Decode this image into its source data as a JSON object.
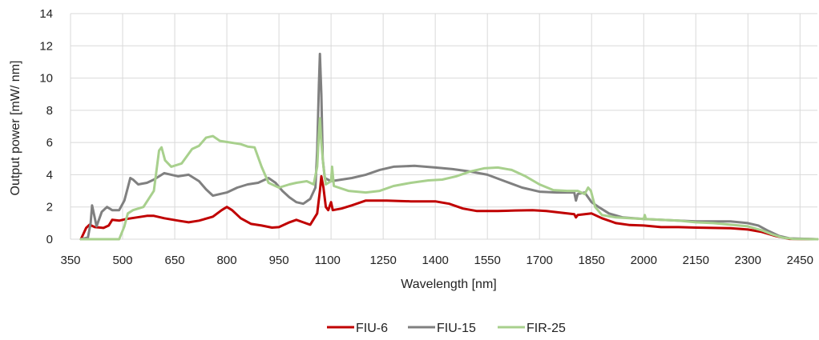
{
  "chart_data": {
    "type": "line",
    "title": "",
    "xlabel": "Wavelength [nm]",
    "ylabel": "Output power [mW/ nm]",
    "xlim": [
      350,
      2500
    ],
    "ylim": [
      0,
      14
    ],
    "x_ticks": [
      350,
      500,
      650,
      800,
      950,
      1100,
      1250,
      1400,
      1550,
      1700,
      1850,
      2000,
      2150,
      2300,
      2450
    ],
    "x_tick_labels": [
      "350",
      "500",
      "650",
      "800",
      "950",
      "1100",
      "1250",
      "1400",
      "1550",
      "1700",
      "1850",
      "2000",
      "2150",
      "2300",
      "2450"
    ],
    "extra_x_label": {
      "value": 1100,
      "text": "1100"
    },
    "x_tick_labels_display": [
      "350",
      "500",
      "650",
      "800",
      "950",
      "1100",
      "1250",
      "1400",
      "1550",
      "1700",
      "1850",
      "2000",
      "2150",
      "2300",
      "2450"
    ],
    "y_ticks": [
      0,
      2,
      4,
      6,
      8,
      10,
      12,
      14
    ],
    "y_tick_labels": [
      "0",
      "2",
      "4",
      "6",
      "8",
      "10",
      "12",
      "14"
    ],
    "grid": true,
    "legend_position": "bottom",
    "series": [
      {
        "name": "FIU-6",
        "color": "#c00000",
        "points": [
          [
            380,
            0
          ],
          [
            395,
            0.7
          ],
          [
            405,
            0.9
          ],
          [
            420,
            0.75
          ],
          [
            445,
            0.7
          ],
          [
            460,
            0.85
          ],
          [
            470,
            1.2
          ],
          [
            490,
            1.15
          ],
          [
            510,
            1.25
          ],
          [
            540,
            1.35
          ],
          [
            570,
            1.45
          ],
          [
            590,
            1.45
          ],
          [
            620,
            1.3
          ],
          [
            660,
            1.15
          ],
          [
            690,
            1.05
          ],
          [
            720,
            1.15
          ],
          [
            760,
            1.4
          ],
          [
            785,
            1.8
          ],
          [
            800,
            2.0
          ],
          [
            815,
            1.8
          ],
          [
            840,
            1.3
          ],
          [
            870,
            0.95
          ],
          [
            900,
            0.85
          ],
          [
            930,
            0.72
          ],
          [
            950,
            0.75
          ],
          [
            980,
            1.05
          ],
          [
            1000,
            1.2
          ],
          [
            1020,
            1.05
          ],
          [
            1040,
            0.9
          ],
          [
            1060,
            1.6
          ],
          [
            1068,
            3.0
          ],
          [
            1072,
            3.9
          ],
          [
            1078,
            3.2
          ],
          [
            1085,
            2.0
          ],
          [
            1092,
            1.8
          ],
          [
            1100,
            2.3
          ],
          [
            1105,
            1.8
          ],
          [
            1130,
            1.9
          ],
          [
            1160,
            2.1
          ],
          [
            1200,
            2.4
          ],
          [
            1260,
            2.4
          ],
          [
            1330,
            2.35
          ],
          [
            1400,
            2.35
          ],
          [
            1440,
            2.2
          ],
          [
            1480,
            1.9
          ],
          [
            1520,
            1.75
          ],
          [
            1580,
            1.75
          ],
          [
            1630,
            1.78
          ],
          [
            1680,
            1.8
          ],
          [
            1720,
            1.75
          ],
          [
            1760,
            1.65
          ],
          [
            1800,
            1.55
          ],
          [
            1805,
            1.35
          ],
          [
            1810,
            1.5
          ],
          [
            1850,
            1.6
          ],
          [
            1880,
            1.3
          ],
          [
            1920,
            1.0
          ],
          [
            1960,
            0.88
          ],
          [
            2000,
            0.85
          ],
          [
            2050,
            0.75
          ],
          [
            2100,
            0.75
          ],
          [
            2150,
            0.72
          ],
          [
            2200,
            0.7
          ],
          [
            2250,
            0.68
          ],
          [
            2300,
            0.6
          ],
          [
            2340,
            0.45
          ],
          [
            2380,
            0.2
          ],
          [
            2420,
            0.02
          ],
          [
            2500,
            0
          ]
        ]
      },
      {
        "name": "FIU-15",
        "color": "#808080",
        "points": [
          [
            380,
            0
          ],
          [
            400,
            0.1
          ],
          [
            408,
            1.0
          ],
          [
            412,
            2.1
          ],
          [
            418,
            1.5
          ],
          [
            425,
            0.8
          ],
          [
            440,
            1.7
          ],
          [
            455,
            2.0
          ],
          [
            470,
            1.8
          ],
          [
            490,
            1.8
          ],
          [
            505,
            2.4
          ],
          [
            515,
            3.2
          ],
          [
            522,
            3.8
          ],
          [
            530,
            3.7
          ],
          [
            545,
            3.4
          ],
          [
            570,
            3.5
          ],
          [
            590,
            3.7
          ],
          [
            620,
            4.1
          ],
          [
            640,
            4.0
          ],
          [
            660,
            3.9
          ],
          [
            690,
            4.0
          ],
          [
            720,
            3.6
          ],
          [
            740,
            3.1
          ],
          [
            760,
            2.7
          ],
          [
            780,
            2.8
          ],
          [
            800,
            2.9
          ],
          [
            830,
            3.2
          ],
          [
            860,
            3.4
          ],
          [
            890,
            3.5
          ],
          [
            920,
            3.8
          ],
          [
            940,
            3.5
          ],
          [
            960,
            3.0
          ],
          [
            980,
            2.6
          ],
          [
            1000,
            2.3
          ],
          [
            1020,
            2.2
          ],
          [
            1040,
            2.5
          ],
          [
            1055,
            3.2
          ],
          [
            1060,
            5.5
          ],
          [
            1065,
            9.5
          ],
          [
            1068,
            11.5
          ],
          [
            1072,
            9.0
          ],
          [
            1076,
            5.0
          ],
          [
            1082,
            3.8
          ],
          [
            1100,
            3.6
          ],
          [
            1130,
            3.7
          ],
          [
            1160,
            3.8
          ],
          [
            1200,
            4.0
          ],
          [
            1240,
            4.3
          ],
          [
            1280,
            4.5
          ],
          [
            1340,
            4.55
          ],
          [
            1400,
            4.45
          ],
          [
            1450,
            4.35
          ],
          [
            1500,
            4.2
          ],
          [
            1550,
            4.0
          ],
          [
            1600,
            3.6
          ],
          [
            1650,
            3.2
          ],
          [
            1700,
            2.95
          ],
          [
            1750,
            2.9
          ],
          [
            1800,
            2.9
          ],
          [
            1805,
            2.4
          ],
          [
            1810,
            2.8
          ],
          [
            1830,
            2.9
          ],
          [
            1850,
            2.3
          ],
          [
            1870,
            2.0
          ],
          [
            1900,
            1.6
          ],
          [
            1940,
            1.35
          ],
          [
            2000,
            1.25
          ],
          [
            2050,
            1.2
          ],
          [
            2100,
            1.15
          ],
          [
            2150,
            1.1
          ],
          [
            2200,
            1.1
          ],
          [
            2250,
            1.1
          ],
          [
            2300,
            1.0
          ],
          [
            2330,
            0.85
          ],
          [
            2360,
            0.5
          ],
          [
            2390,
            0.2
          ],
          [
            2420,
            0.05
          ],
          [
            2500,
            0
          ]
        ]
      },
      {
        "name": "FIR-25",
        "color": "#a8d08d",
        "points": [
          [
            380,
            0
          ],
          [
            490,
            0
          ],
          [
            505,
            0.8
          ],
          [
            515,
            1.6
          ],
          [
            530,
            1.8
          ],
          [
            560,
            2.0
          ],
          [
            590,
            3.0
          ],
          [
            605,
            5.5
          ],
          [
            612,
            5.7
          ],
          [
            622,
            4.9
          ],
          [
            640,
            4.5
          ],
          [
            670,
            4.7
          ],
          [
            700,
            5.6
          ],
          [
            720,
            5.8
          ],
          [
            740,
            6.3
          ],
          [
            760,
            6.4
          ],
          [
            780,
            6.1
          ],
          [
            810,
            6.0
          ],
          [
            840,
            5.9
          ],
          [
            860,
            5.75
          ],
          [
            880,
            5.7
          ],
          [
            900,
            4.5
          ],
          [
            920,
            3.5
          ],
          [
            950,
            3.2
          ],
          [
            980,
            3.4
          ],
          [
            1000,
            3.5
          ],
          [
            1030,
            3.6
          ],
          [
            1050,
            3.4
          ],
          [
            1060,
            4.5
          ],
          [
            1065,
            6.5
          ],
          [
            1068,
            7.5
          ],
          [
            1072,
            6.0
          ],
          [
            1078,
            4.5
          ],
          [
            1085,
            3.4
          ],
          [
            1100,
            3.6
          ],
          [
            1103,
            4.5
          ],
          [
            1108,
            3.3
          ],
          [
            1150,
            3.0
          ],
          [
            1200,
            2.9
          ],
          [
            1240,
            3.0
          ],
          [
            1280,
            3.3
          ],
          [
            1330,
            3.5
          ],
          [
            1380,
            3.65
          ],
          [
            1420,
            3.7
          ],
          [
            1460,
            3.9
          ],
          [
            1500,
            4.2
          ],
          [
            1540,
            4.4
          ],
          [
            1580,
            4.45
          ],
          [
            1620,
            4.3
          ],
          [
            1660,
            3.9
          ],
          [
            1700,
            3.4
          ],
          [
            1740,
            3.05
          ],
          [
            1780,
            3.0
          ],
          [
            1810,
            3.0
          ],
          [
            1830,
            2.8
          ],
          [
            1840,
            3.2
          ],
          [
            1848,
            3.0
          ],
          [
            1860,
            2.0
          ],
          [
            1880,
            1.5
          ],
          [
            1920,
            1.35
          ],
          [
            1960,
            1.3
          ],
          [
            2000,
            1.25
          ],
          [
            2003,
            1.5
          ],
          [
            2006,
            1.25
          ],
          [
            2050,
            1.2
          ],
          [
            2100,
            1.15
          ],
          [
            2150,
            1.05
          ],
          [
            2200,
            1.0
          ],
          [
            2250,
            0.9
          ],
          [
            2300,
            0.8
          ],
          [
            2340,
            0.55
          ],
          [
            2370,
            0.3
          ],
          [
            2400,
            0.1
          ],
          [
            2430,
            0.02
          ],
          [
            2500,
            0
          ]
        ]
      }
    ]
  }
}
